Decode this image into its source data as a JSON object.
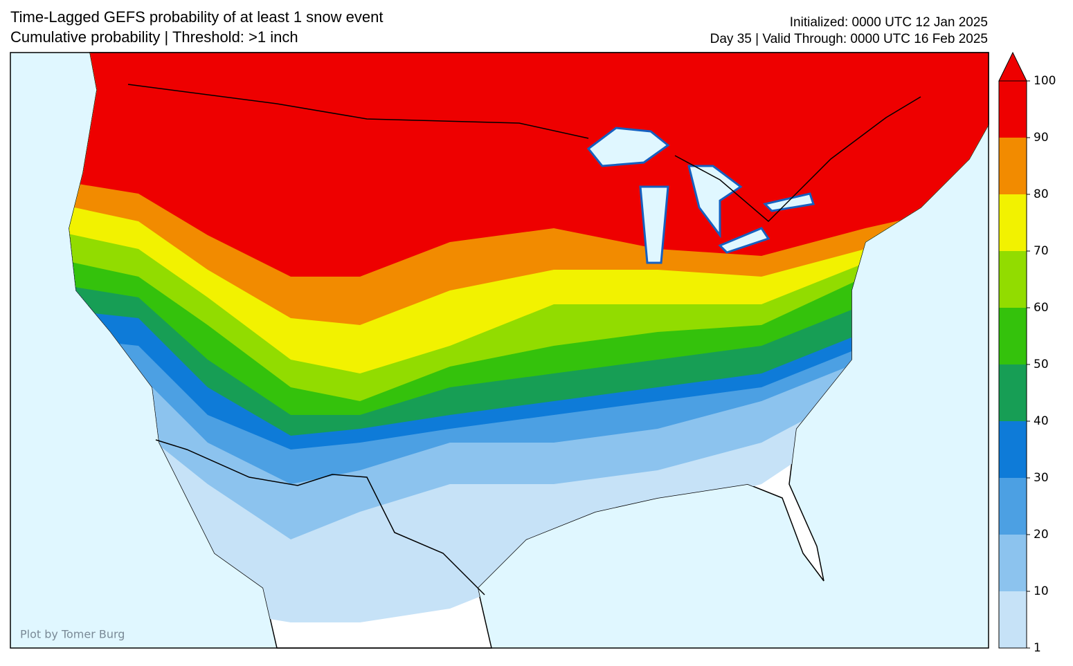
{
  "header": {
    "title": "Time-Lagged GEFS probability of at least 1 snow event",
    "subtitle": "Cumulative probability | Threshold: >1 inch",
    "initialized": "Initialized: 0000 UTC 12 Jan 2025",
    "valid": "Day 35 | Valid Through: 0000 UTC 16 Feb 2025"
  },
  "credit": "Plot by Tomer Burg",
  "colorbar": {
    "levels": [
      1,
      10,
      20,
      30,
      40,
      50,
      60,
      70,
      80,
      90,
      100
    ],
    "colors": [
      "#c6e2f7",
      "#8cc3ee",
      "#4ca0e3",
      "#0e7bd8",
      "#179e55",
      "#34c20c",
      "#92dc00",
      "#f2f200",
      "#f28b00",
      "#ee0000"
    ],
    "extend": "max"
  }
}
